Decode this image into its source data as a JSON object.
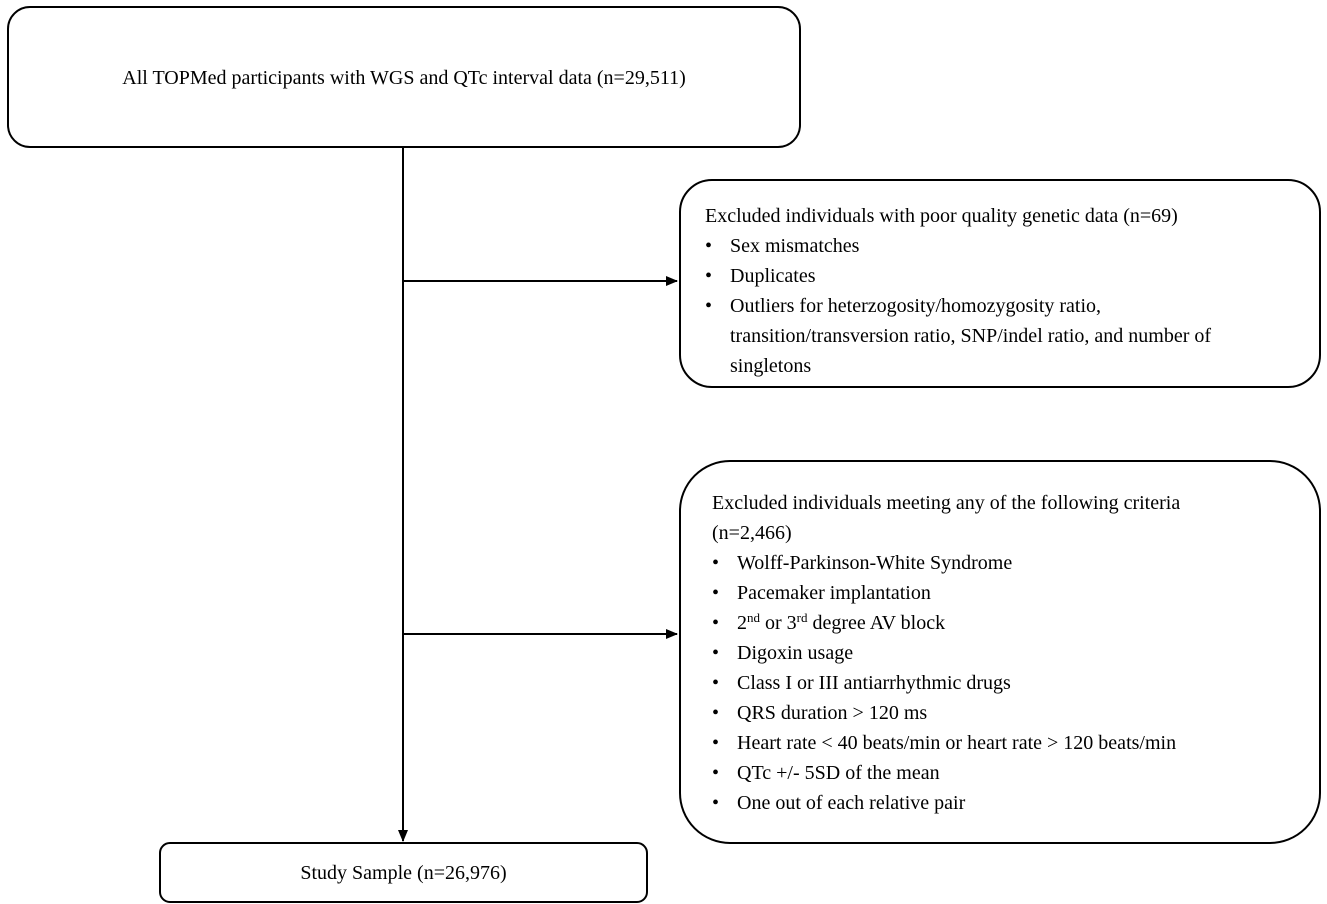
{
  "box1": {
    "text": "All TOPMed participants with WGS and QTc interval data (n=29,511)"
  },
  "box2": {
    "title": "Excluded individuals with poor quality genetic data (n=69)",
    "items": [
      "Sex mismatches",
      "Duplicates",
      "Outliers for heterzogosity/homozygosity ratio, transition/transversion ratio, SNP/indel ratio, and number of singletons"
    ]
  },
  "box3": {
    "title": "Excluded individuals meeting any of the following criteria (n=2,466)",
    "items": [
      "Wolff-Parkinson-White Syndrome",
      "Pacemaker implantation",
      [
        {
          "text": "2"
        },
        {
          "text": "nd",
          "superscript": true
        },
        {
          "text": " or 3"
        },
        {
          "text": "rd",
          "superscript": true
        },
        {
          "text": " degree AV block"
        }
      ],
      "Digoxin usage",
      "Class I or III antiarrhythmic drugs",
      "QRS duration > 120 ms",
      "Heart rate < 40 beats/min or heart rate > 120 beats/min",
      "QTc +/- 5SD of the mean",
      "One out of each relative pair"
    ]
  },
  "box4": {
    "text": "Study Sample (n=26,976)"
  }
}
